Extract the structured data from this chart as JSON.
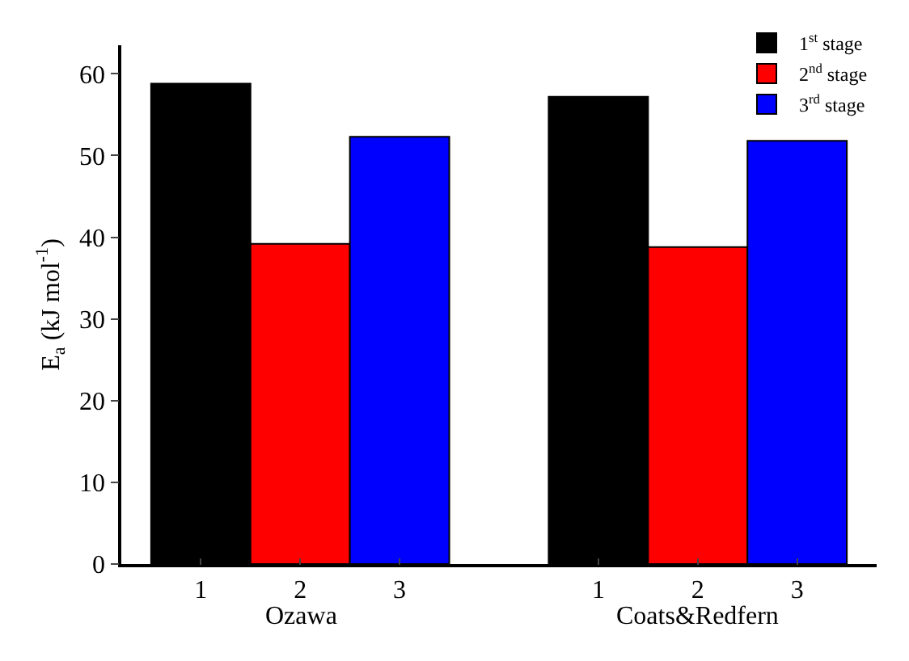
{
  "chart_data": {
    "type": "bar",
    "categories": [
      "1",
      "2",
      "3",
      null,
      "1",
      "2",
      "3"
    ],
    "series": [
      {
        "name": "1$^{st}$ stage",
        "color": "#000000",
        "values": [
          58.8,
          null,
          null,
          null,
          57.2,
          null,
          null
        ]
      },
      {
        "name": "2$^{nd}$ stage",
        "color": "#ff0000",
        "values": [
          null,
          39.2,
          null,
          null,
          null,
          38.8,
          null
        ]
      },
      {
        "name": "3$^{rd}$ stage",
        "color": "#0000ff",
        "values": [
          null,
          null,
          52.3,
          null,
          null,
          null,
          51.8
        ]
      }
    ],
    "ylabel": "E$_{a}$ (kJ mol$^{-1}$)",
    "ylim": [
      0,
      63.5
    ],
    "yticks": [
      0,
      10,
      20,
      30,
      40,
      50,
      60
    ],
    "annotations": [
      "Ozawa",
      "Coats&Redfern"
    ],
    "grid": false,
    "legend": "top right"
  }
}
